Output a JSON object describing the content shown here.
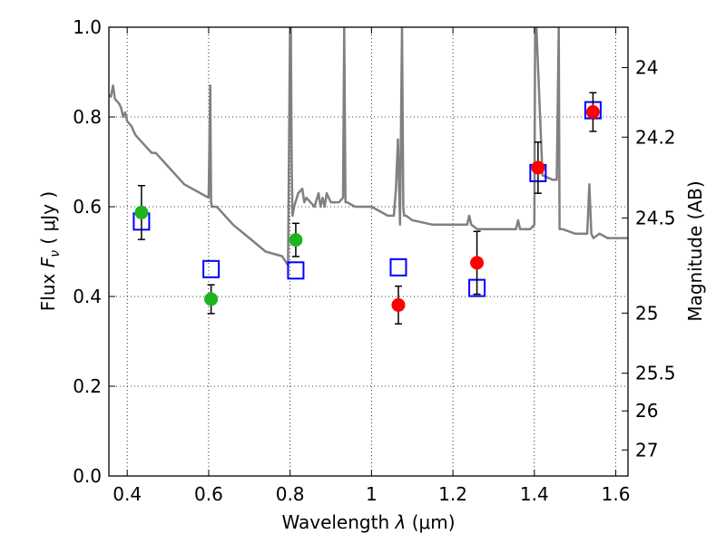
{
  "chart_data": {
    "type": "scatter",
    "xlabel_prefix": "Wavelength",
    "xlabel_symbol": "λ",
    "xlabel_unit": "(μm)",
    "ylabel_prefix": "Flux",
    "ylabel_symbol_main": "F",
    "ylabel_symbol_sub": "ν",
    "ylabel_unit": "( μJy )",
    "y2label": "Magnitude (AB)",
    "xlim": [
      0.355,
      1.63
    ],
    "ylim": [
      0.0,
      1.0
    ],
    "grid": true,
    "xticks": [
      0.4,
      0.6,
      0.8,
      1.0,
      1.2,
      1.4,
      1.6
    ],
    "xtick_labels": [
      "0.4",
      "0.6",
      "0.8",
      "1",
      "1.2",
      "1.4",
      "1.6"
    ],
    "yticks": [
      0.0,
      0.2,
      0.4,
      0.6,
      0.8,
      1.0
    ],
    "ytick_labels": [
      "0.0",
      "0.2",
      "0.4",
      "0.6",
      "0.8",
      "1.0"
    ],
    "y2ticks": [
      {
        "label": "24",
        "flux": 0.91
      },
      {
        "label": "24.2",
        "flux": 0.755
      },
      {
        "label": "24.5",
        "flux": 0.575
      },
      {
        "label": "25",
        "flux": 0.363
      },
      {
        "label": "25.5",
        "flux": 0.229
      },
      {
        "label": "26",
        "flux": 0.145
      },
      {
        "label": "27",
        "flux": 0.058
      }
    ],
    "colors": {
      "spectrum": "#808080",
      "green_points": "#1fb31f",
      "red_points": "#ff0000",
      "model_squares": "#0000ff",
      "error_bars": "#000000"
    },
    "series": [
      {
        "marker": "circle",
        "color": "green",
        "points": [
          {
            "x": 0.435,
            "y": 0.587,
            "err": 0.06
          },
          {
            "x": 0.606,
            "y": 0.394,
            "err": 0.032
          },
          {
            "x": 0.814,
            "y": 0.526,
            "err": 0.037
          }
        ]
      },
      {
        "marker": "circle",
        "color": "red",
        "points": [
          {
            "x": 1.066,
            "y": 0.381,
            "err": 0.042
          },
          {
            "x": 1.259,
            "y": 0.475,
            "err": 0.07
          },
          {
            "x": 1.409,
            "y": 0.687,
            "err": 0.057
          },
          {
            "x": 1.544,
            "y": 0.811,
            "err": 0.043
          }
        ]
      },
      {
        "marker": "open-square",
        "color": "blue",
        "points": [
          {
            "x": 0.435,
            "y": 0.567
          },
          {
            "x": 0.606,
            "y": 0.461
          },
          {
            "x": 0.814,
            "y": 0.458
          },
          {
            "x": 1.066,
            "y": 0.465
          },
          {
            "x": 1.259,
            "y": 0.419
          },
          {
            "x": 1.409,
            "y": 0.675
          },
          {
            "x": 1.544,
            "y": 0.815
          }
        ]
      },
      {
        "marker": "line",
        "color": "gray",
        "x": [
          0.355,
          0.36,
          0.365,
          0.37,
          0.38,
          0.385,
          0.39,
          0.395,
          0.4,
          0.41,
          0.42,
          0.43,
          0.44,
          0.45,
          0.46,
          0.47,
          0.48,
          0.49,
          0.5,
          0.52,
          0.54,
          0.56,
          0.58,
          0.6,
          0.604,
          0.606,
          0.608,
          0.612,
          0.62,
          0.66,
          0.7,
          0.74,
          0.78,
          0.795,
          0.8,
          0.802,
          0.804,
          0.806,
          0.81,
          0.82,
          0.83,
          0.835,
          0.84,
          0.85,
          0.86,
          0.87,
          0.875,
          0.88,
          0.885,
          0.89,
          0.9,
          0.92,
          0.93,
          0.933,
          0.936,
          0.94,
          0.96,
          1.0,
          1.04,
          1.055,
          1.06,
          1.065,
          1.07,
          1.075,
          1.078,
          1.08,
          1.085,
          1.1,
          1.15,
          1.2,
          1.235,
          1.24,
          1.245,
          1.26,
          1.3,
          1.355,
          1.36,
          1.365,
          1.39,
          1.4,
          1.402,
          1.405,
          1.42,
          1.445,
          1.455,
          1.46,
          1.462,
          1.47,
          1.5,
          1.53,
          1.535,
          1.54,
          1.545,
          1.56,
          1.58,
          1.6,
          1.63
        ],
        "y": [
          0.85,
          0.845,
          0.87,
          0.84,
          0.83,
          0.82,
          0.8,
          0.81,
          0.79,
          0.78,
          0.76,
          0.75,
          0.74,
          0.73,
          0.72,
          0.72,
          0.71,
          0.7,
          0.69,
          0.67,
          0.65,
          0.64,
          0.63,
          0.62,
          0.87,
          0.61,
          0.6,
          0.6,
          0.6,
          0.56,
          0.53,
          0.5,
          0.49,
          0.47,
          1.0,
          1.0,
          0.7,
          0.58,
          0.6,
          0.63,
          0.64,
          0.61,
          0.62,
          0.61,
          0.6,
          0.63,
          0.6,
          0.62,
          0.6,
          0.63,
          0.61,
          0.61,
          0.62,
          1.0,
          0.61,
          0.61,
          0.6,
          0.6,
          0.58,
          0.58,
          0.64,
          0.75,
          0.56,
          1.0,
          0.6,
          0.58,
          0.58,
          0.57,
          0.56,
          0.56,
          0.56,
          0.58,
          0.56,
          0.55,
          0.55,
          0.55,
          0.57,
          0.55,
          0.55,
          0.56,
          1.0,
          1.0,
          0.67,
          0.66,
          0.66,
          1.0,
          0.55,
          0.55,
          0.54,
          0.54,
          0.65,
          0.54,
          0.53,
          0.54,
          0.53,
          0.53,
          0.53
        ]
      }
    ]
  }
}
